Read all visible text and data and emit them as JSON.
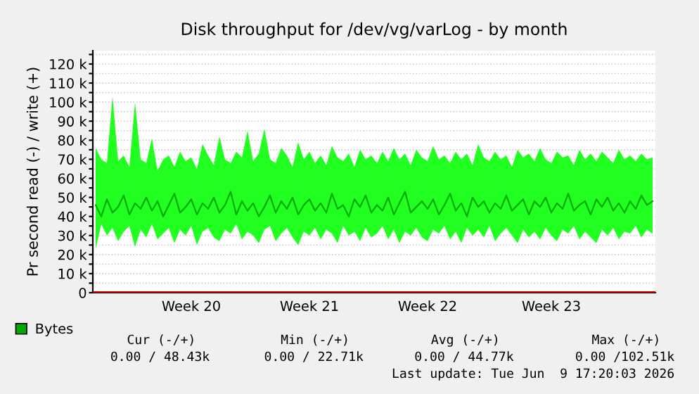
{
  "chart_data": {
    "type": "line",
    "title": "Disk throughput for /dev/vg/varLog - by month",
    "ylabel": "Pr second read (-) / write (+)",
    "categories": [
      null,
      null,
      null,
      null,
      null,
      null,
      null,
      null,
      null,
      null,
      null,
      null,
      null,
      null,
      null,
      null,
      null,
      "Week 20",
      null,
      null,
      null,
      null,
      null,
      null,
      null,
      null,
      null,
      null,
      null,
      null,
      null,
      null,
      null,
      null,
      null,
      null,
      null,
      null,
      "Week 21",
      null,
      null,
      null,
      null,
      null,
      null,
      null,
      null,
      null,
      null,
      null,
      null,
      null,
      null,
      null,
      null,
      null,
      null,
      null,
      null,
      "Week 22",
      null,
      null,
      null,
      null,
      null,
      null,
      null,
      null,
      null,
      null,
      null,
      null,
      null,
      null,
      null,
      null,
      null,
      null,
      null,
      null,
      null,
      "Week 23",
      null,
      null,
      null,
      null,
      null,
      null,
      null,
      null,
      null,
      null,
      null,
      null,
      null,
      null,
      null,
      null,
      null,
      null
    ],
    "ylim": [
      0,
      127000
    ],
    "yticks": [
      0,
      {
        "value": 5000,
        "label": null
      },
      {
        "value": 10000,
        "label": "10 k"
      },
      {
        "value": 15000,
        "label": null
      },
      {
        "value": 20000,
        "label": "20 k"
      },
      {
        "value": 25000,
        "label": null
      },
      {
        "value": 30000,
        "label": "30 k"
      },
      {
        "value": 35000,
        "label": null
      },
      {
        "value": 40000,
        "label": "40 k"
      },
      {
        "value": 45000,
        "label": null
      },
      {
        "value": 50000,
        "label": "50 k"
      },
      {
        "value": 55000,
        "label": null
      },
      {
        "value": 60000,
        "label": "60 k"
      },
      {
        "value": 65000,
        "label": null
      },
      {
        "value": 70000,
        "label": "70 k"
      },
      {
        "value": 75000,
        "label": null
      },
      {
        "value": 80000,
        "label": "80 k"
      },
      {
        "value": 85000,
        "label": null
      },
      {
        "value": 90000,
        "label": "90 k"
      },
      {
        "value": 95000,
        "label": null
      },
      {
        "value": 100000,
        "label": "100 k"
      },
      {
        "value": 105000,
        "label": null
      },
      {
        "value": 110000,
        "label": "110 k"
      },
      {
        "value": 115000,
        "label": null
      },
      {
        "value": 120000,
        "label": "120 k"
      },
      {
        "value": 125000,
        "label": null
      }
    ],
    "grid": "y",
    "legend": "bottom left",
    "series": [
      {
        "name": "Bytes",
        "color": "#00aa00",
        "values": [
          46000,
          40000,
          49000,
          42000,
          45000,
          51000,
          41000,
          47000,
          44000,
          50000,
          43000,
          48000,
          40000,
          46000,
          52000,
          42000,
          45000,
          49000,
          41000,
          47000,
          44000,
          50000,
          42000,
          46000,
          53000,
          41000,
          48000,
          43000,
          47000,
          40000,
          45000,
          51000,
          42000,
          48000,
          44000,
          50000,
          41000,
          46000,
          49000,
          43000,
          47000,
          42000,
          52000,
          44000,
          46000,
          40000,
          49000,
          45000,
          51000,
          42000,
          46000,
          43000,
          50000,
          41000,
          47000,
          53000,
          42000,
          45000,
          48000,
          44000,
          49000,
          41000,
          46000,
          52000,
          43000,
          47000,
          40000,
          50000,
          45000,
          48000,
          42000,
          47000,
          44000,
          51000,
          43000,
          46000,
          49000,
          41000,
          48000,
          45000,
          50000,
          42000,
          47000,
          44000,
          52000,
          43000,
          46000,
          48000,
          41000,
          49000,
          45000,
          50000,
          43000,
          47000,
          42000,
          48000,
          44000,
          51000,
          46000,
          48000
        ],
        "upper": [
          76000,
          70000,
          68000,
          103000,
          69000,
          72000,
          66000,
          100000,
          70000,
          68000,
          81000,
          64000,
          70000,
          72000,
          66000,
          74000,
          69000,
          71000,
          65000,
          78000,
          72000,
          67000,
          82000,
          70000,
          68000,
          74000,
          71000,
          85000,
          69000,
          73000,
          86000,
          70000,
          68000,
          76000,
          72000,
          66000,
          79000,
          70000,
          74000,
          68000,
          72000,
          67000,
          77000,
          71000,
          69000,
          73000,
          66000,
          75000,
          70000,
          72000,
          68000,
          74000,
          69000,
          76000,
          70000,
          73000,
          67000,
          75000,
          71000,
          69000,
          77000,
          70000,
          72000,
          68000,
          74000,
          70000,
          73000,
          67000,
          78000,
          71000,
          69000,
          74000,
          70000,
          72000,
          66000,
          75000,
          71000,
          73000,
          69000,
          76000,
          70000,
          68000,
          74000,
          71000,
          72000,
          67000,
          75000,
          70000,
          73000,
          69000,
          74000,
          71000,
          68000,
          75000,
          70000,
          72000,
          69000,
          73000,
          70000,
          71000
        ],
        "lower": [
          23000,
          36000,
          30000,
          34000,
          27000,
          32000,
          35000,
          24000,
          33000,
          29000,
          36000,
          28000,
          31000,
          34000,
          26000,
          33000,
          30000,
          35000,
          25000,
          32000,
          34000,
          29000,
          27000,
          33000,
          31000,
          36000,
          28000,
          32000,
          30000,
          26000,
          33000,
          35000,
          27000,
          31000,
          34000,
          29000,
          25000,
          32000,
          30000,
          34000,
          28000,
          33000,
          31000,
          26000,
          35000,
          30000,
          32000,
          27000,
          34000,
          29000,
          31000,
          35000,
          28000,
          33000,
          26000,
          32000,
          30000,
          34000,
          29000,
          27000,
          33000,
          31000,
          35000,
          28000,
          32000,
          26000,
          34000,
          30000,
          33000,
          29000,
          35000,
          27000,
          31000,
          34000,
          30000,
          26000,
          33000,
          29000,
          32000,
          28000,
          34000,
          30000,
          27000,
          33000,
          31000,
          35000,
          28000,
          32000,
          29000,
          26000,
          33000,
          30000,
          34000,
          28000,
          32000,
          31000,
          35000,
          29000,
          33000,
          31000
        ]
      }
    ],
    "ref_lines": [
      {
        "axis": "y",
        "value": 0,
        "color": "#cc0000",
        "line_style": "solid"
      }
    ],
    "annotations": [
      "Cur (-/+)",
      "Min (-/+)",
      "Avg (-/+)",
      "Max (-/+)",
      "0.00 / 48.43k",
      "0.00 / 22.71k",
      "0.00 / 44.77k",
      "0.00 /102.51k",
      "Last update: Tue Jun  9 17:20:03 2026"
    ]
  }
}
